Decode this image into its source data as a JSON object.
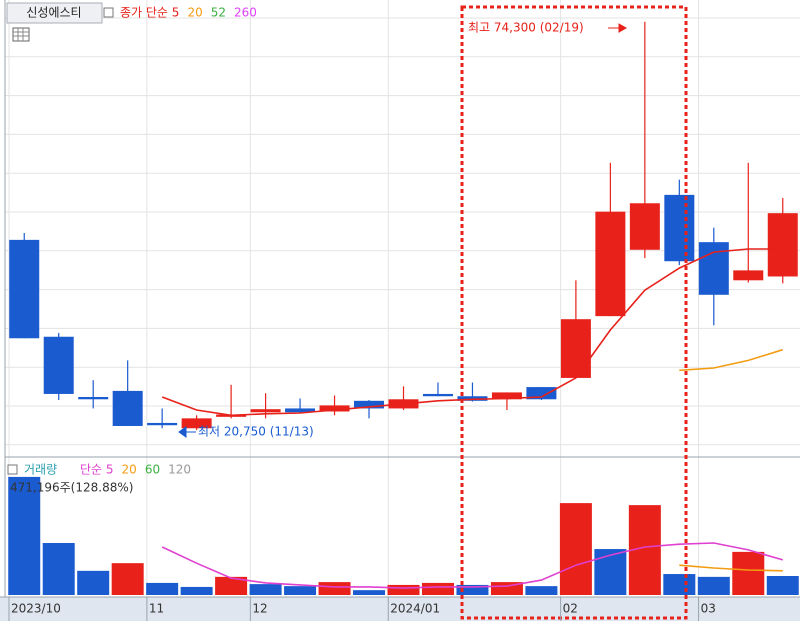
{
  "toolbar": {
    "stock_name": "신성에스티"
  },
  "chart_data": [
    {
      "type": "candlestick",
      "ylim": [
        19200,
        76100
      ],
      "up_color": "#e8211a",
      "down_color": "#1a5bd0",
      "open": [
        45700,
        33000,
        25100,
        25900,
        21700,
        21000,
        22500,
        23100,
        23600,
        23200,
        24600,
        23600,
        25500,
        25200,
        24800,
        26400,
        27600,
        35700,
        44400,
        51600,
        45400,
        40400,
        40900
      ],
      "high": [
        46600,
        33500,
        27300,
        29900,
        23600,
        22700,
        26700,
        25600,
        24900,
        25300,
        24700,
        26500,
        27000,
        27000,
        25700,
        26400,
        40400,
        55800,
        74300,
        53600,
        47300,
        55800,
        51200
      ],
      "low": [
        32800,
        24700,
        23600,
        21300,
        21000,
        20750,
        22300,
        22300,
        23000,
        22700,
        22300,
        23400,
        25200,
        24500,
        23400,
        24700,
        27600,
        35700,
        43300,
        42400,
        34500,
        40100,
        40000
      ],
      "close": [
        32800,
        25500,
        24800,
        21300,
        21400,
        22300,
        22800,
        23500,
        23100,
        24000,
        23600,
        24800,
        25200,
        24600,
        25700,
        24800,
        35300,
        49400,
        50500,
        42900,
        38500,
        41700,
        49200
      ],
      "series": [
        {
          "name": "종가 단순 5",
          "color": "#e8211a",
          "values": [
            null,
            null,
            null,
            null,
            25100,
            23400,
            22700,
            22900,
            23000,
            23400,
            23800,
            24200,
            24600,
            24800,
            24900,
            25100,
            27600,
            33900,
            39100,
            42000,
            44100,
            44500,
            44500
          ]
        },
        {
          "name": "20",
          "color": "#f39c12",
          "values": [
            null,
            null,
            null,
            null,
            null,
            null,
            null,
            null,
            null,
            null,
            null,
            null,
            null,
            null,
            null,
            null,
            null,
            null,
            null,
            28600,
            28900,
            29900,
            31300
          ]
        },
        {
          "name": "52",
          "color": "#3cb043",
          "values": [
            null,
            null,
            null,
            null,
            null,
            null,
            null,
            null,
            null,
            null,
            null,
            null,
            null,
            null,
            null,
            null,
            null,
            null,
            null,
            null,
            null,
            null,
            null
          ]
        },
        {
          "name": "260",
          "color": "#e040fb",
          "values": [
            null,
            null,
            null,
            null,
            null,
            null,
            null,
            null,
            null,
            null,
            null,
            null,
            null,
            null,
            null,
            null,
            null,
            null,
            null,
            null,
            null,
            null,
            null
          ]
        }
      ],
      "annotations": [
        {
          "text": "최고 74,300 (02/19)",
          "color": "#e8211a"
        },
        {
          "text": "최저 20,750 (11/13)",
          "color": "#1a5bd0"
        }
      ]
    },
    {
      "type": "bar",
      "title": "거래량",
      "info": "471,196주(128.88%)",
      "ylim": [
        0,
        3300000
      ],
      "categories": [
        "2023/10",
        null,
        null,
        null,
        "11",
        null,
        null,
        "12",
        null,
        null,
        null,
        "2024/01",
        null,
        null,
        null,
        null,
        "02",
        null,
        null,
        null,
        "03",
        null,
        null
      ],
      "values": [
        2930000,
        1290000,
        600000,
        790000,
        300000,
        200000,
        450000,
        270000,
        220000,
        320000,
        120000,
        250000,
        300000,
        250000,
        320000,
        220000,
        2280000,
        1140000,
        2230000,
        520000,
        450000,
        1070000,
        471196
      ],
      "colors": [
        "#1a5bd0",
        "#1a5bd0",
        "#1a5bd0",
        "#e8211a",
        "#1a5bd0",
        "#1a5bd0",
        "#e8211a",
        "#1a5bd0",
        "#1a5bd0",
        "#e8211a",
        "#1a5bd0",
        "#e8211a",
        "#e8211a",
        "#1a5bd0",
        "#e8211a",
        "#1a5bd0",
        "#e8211a",
        "#1a5bd0",
        "#e8211a",
        "#1a5bd0",
        "#1a5bd0",
        "#e8211a",
        "#1a5bd0"
      ],
      "series": [
        {
          "name": "단순 5",
          "color": "#e040d0",
          "values": [
            null,
            null,
            null,
            null,
            1190000,
            790000,
            420000,
            300000,
            250000,
            200000,
            200000,
            170000,
            200000,
            200000,
            220000,
            370000,
            740000,
            990000,
            1190000,
            1260000,
            1290000,
            1120000,
            870000
          ]
        },
        {
          "name": "20",
          "color": "#f39c12",
          "values": [
            null,
            null,
            null,
            null,
            null,
            null,
            null,
            null,
            null,
            null,
            null,
            null,
            null,
            null,
            null,
            null,
            null,
            null,
            null,
            740000,
            670000,
            620000,
            600000
          ]
        },
        {
          "name": "60",
          "color": "#3cb043",
          "values": [
            null,
            null,
            null,
            null,
            null,
            null,
            null,
            null,
            null,
            null,
            null,
            null,
            null,
            null,
            null,
            null,
            null,
            null,
            null,
            null,
            null,
            null,
            null
          ]
        },
        {
          "name": "120",
          "color": "#999999",
          "values": [
            null,
            null,
            null,
            null,
            null,
            null,
            null,
            null,
            null,
            null,
            null,
            null,
            null,
            null,
            null,
            null,
            null,
            null,
            null,
            null,
            null,
            null,
            null
          ]
        }
      ]
    }
  ]
}
